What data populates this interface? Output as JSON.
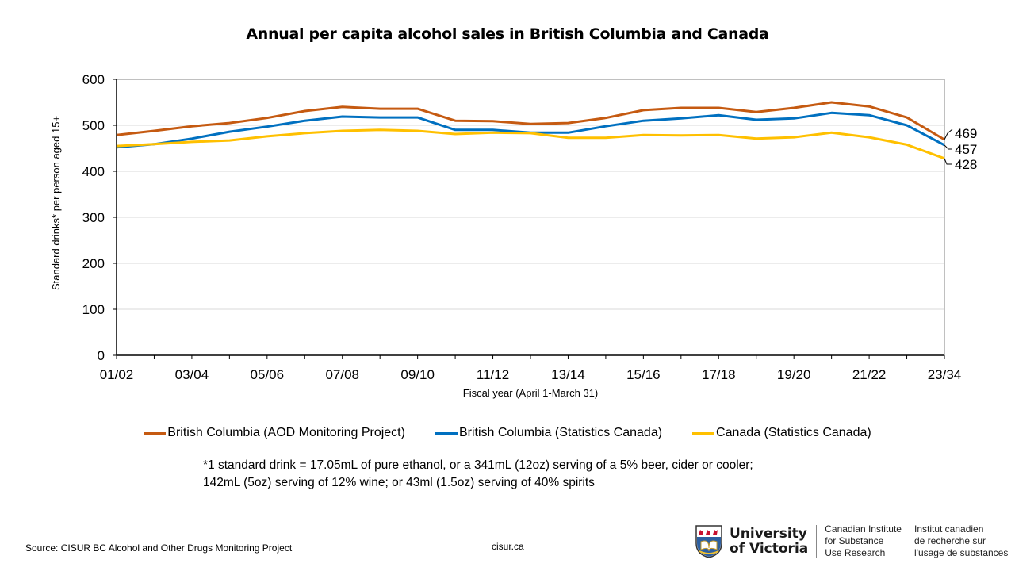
{
  "chart_data": {
    "type": "line",
    "title": "Annual per capita alcohol sales in British Columbia and Canada",
    "xlabel": "Fiscal year (April 1-March 31)",
    "ylabel": "Standard drinks* per person aged 15+",
    "ylim": [
      0,
      600
    ],
    "yticks": [
      0,
      100,
      200,
      300,
      400,
      500,
      600
    ],
    "x": [
      "01/02",
      "02/03",
      "03/04",
      "04/05",
      "05/06",
      "06/07",
      "07/08",
      "08/09",
      "09/10",
      "10/11",
      "11/12",
      "12/13",
      "13/14",
      "14/15",
      "15/16",
      "16/17",
      "17/18",
      "18/19",
      "19/20",
      "20/21",
      "21/22",
      "22/23",
      "23/34"
    ],
    "xtick_labels": [
      "01/02",
      "03/04",
      "05/06",
      "07/08",
      "09/10",
      "11/12",
      "13/14",
      "15/16",
      "17/18",
      "19/20",
      "21/22",
      "23/34"
    ],
    "grid": "horizontal",
    "legend_position": "bottom",
    "series": [
      {
        "name": "British Columbia (AOD Monitoring Project)",
        "color": "#C55A11",
        "values": [
          479,
          488,
          498,
          505,
          516,
          531,
          540,
          536,
          536,
          510,
          509,
          503,
          505,
          516,
          533,
          538,
          538,
          529,
          538,
          550,
          541,
          517,
          469
        ],
        "end_label": "469"
      },
      {
        "name": "British Columbia (Statistics Canada)",
        "color": "#0070C0",
        "values": [
          452,
          459,
          471,
          486,
          497,
          510,
          519,
          517,
          517,
          490,
          490,
          484,
          484,
          498,
          510,
          515,
          522,
          512,
          515,
          527,
          522,
          500,
          457
        ],
        "end_label": "457"
      },
      {
        "name": "Canada (Statistics Canada)",
        "color": "#FFC000",
        "values": [
          455,
          459,
          464,
          467,
          476,
          483,
          488,
          490,
          488,
          481,
          484,
          483,
          473,
          473,
          479,
          478,
          479,
          471,
          474,
          484,
          474,
          458,
          428
        ],
        "end_label": "428"
      }
    ]
  },
  "footnote": {
    "line1": "*1 standard drink = 17.05mL of pure ethanol, or a 341mL (12oz) serving of a 5% beer, cider or cooler;",
    "line2": "142mL (5oz) serving  of 12% wine; or 43ml (1.5oz) serving of 40% spirits"
  },
  "source": "Source: CISUR BC Alcohol and Other Drugs Monitoring Project",
  "site": "cisur.ca",
  "logo": {
    "uvic_line1": "University",
    "uvic_line2": "of Victoria",
    "en_line1": "Canadian Institute",
    "en_line2": "for Substance",
    "en_line3": "Use Research",
    "fr_line1": "Institut canadien",
    "fr_line2": "de recherche sur",
    "fr_line3": "l'usage de substances"
  }
}
